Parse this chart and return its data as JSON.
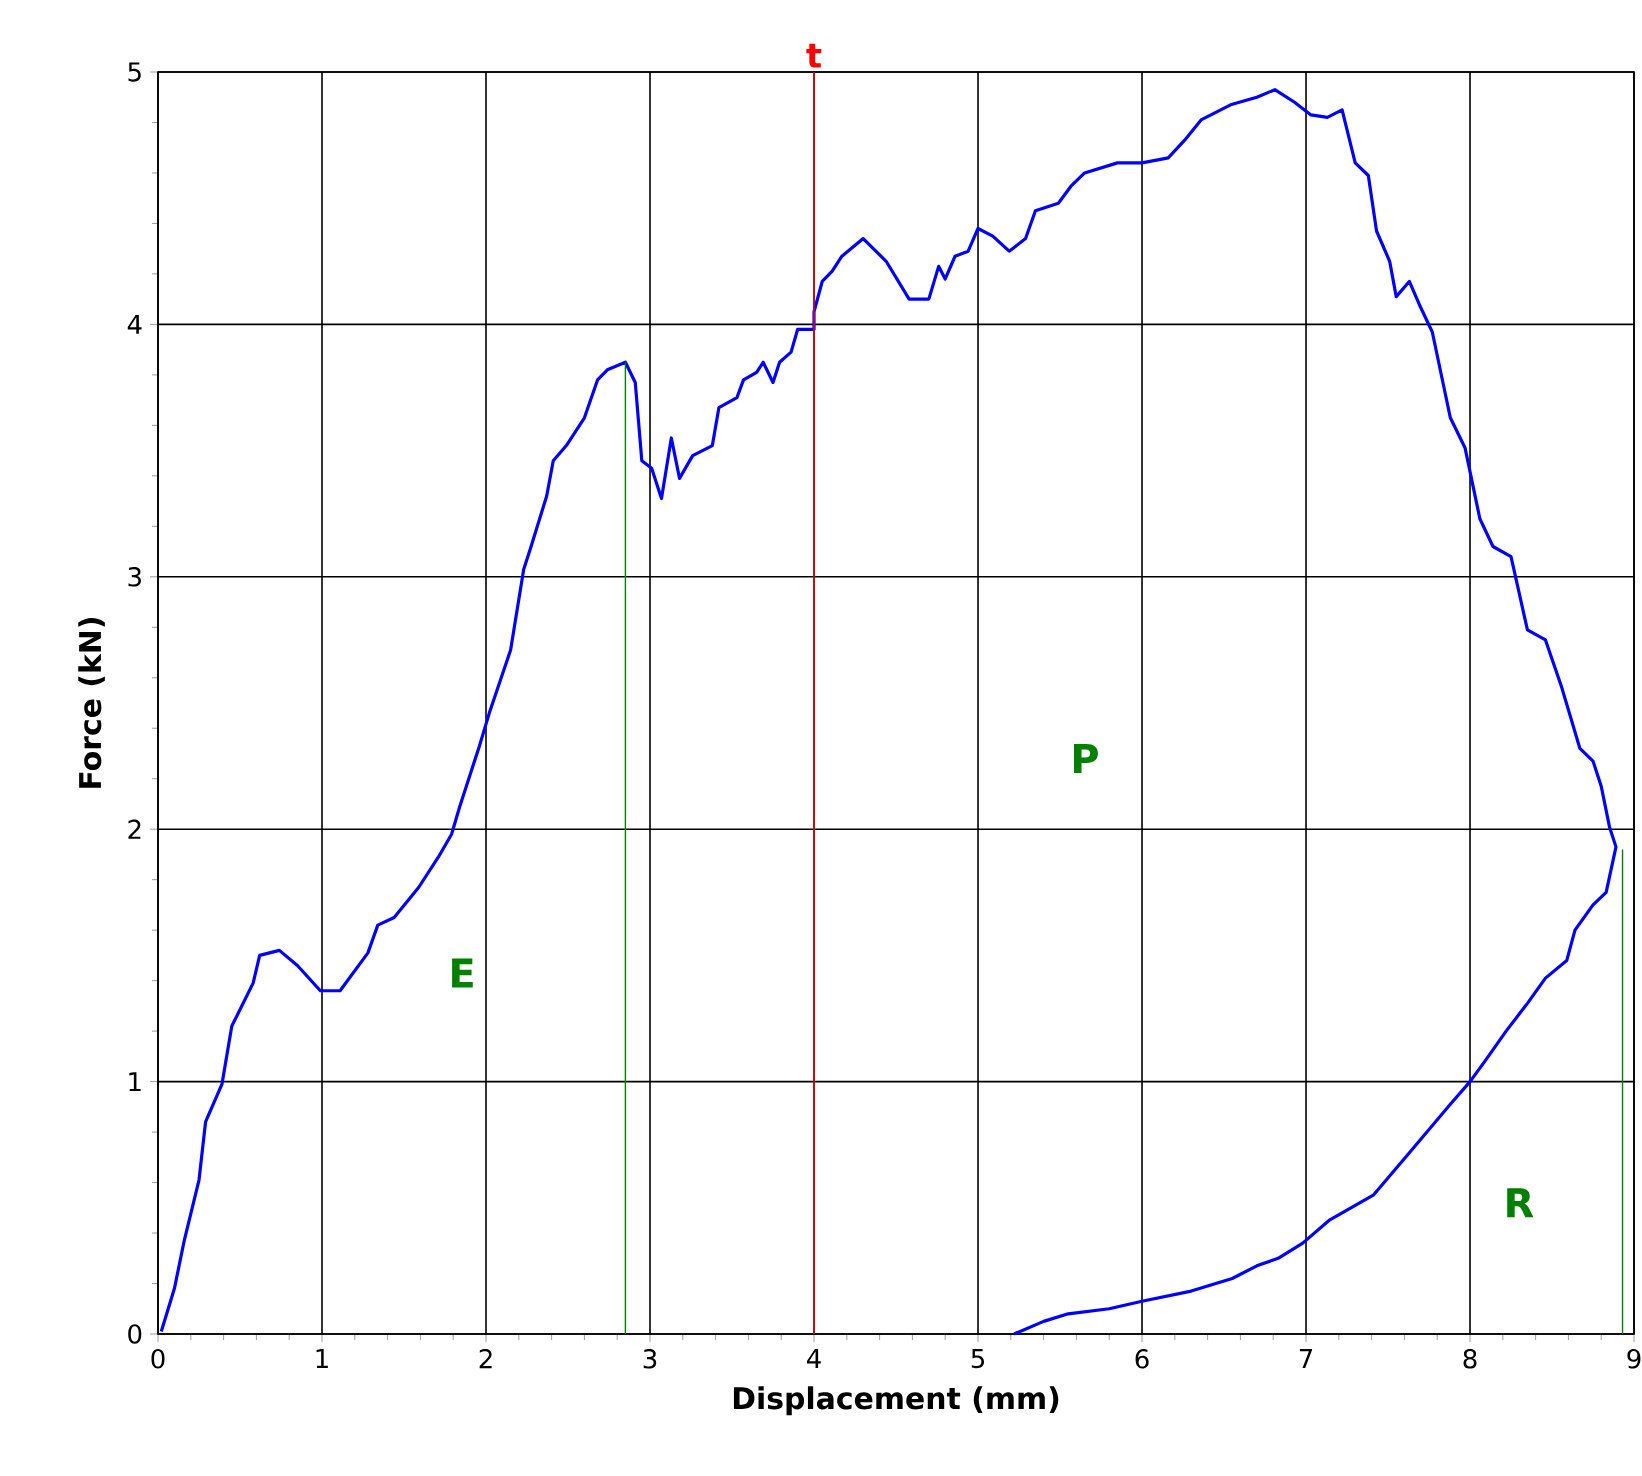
{
  "chart_data": {
    "type": "line",
    "xlabel": "Displacement (mm)",
    "ylabel": "Force (kN)",
    "xlim": [
      0,
      9
    ],
    "ylim": [
      0,
      5
    ],
    "xticks": [
      0,
      1,
      2,
      3,
      4,
      5,
      6,
      7,
      8,
      9
    ],
    "yticks": [
      0,
      1,
      2,
      3,
      4,
      5
    ],
    "grid": true,
    "marker": "none",
    "line_style": "solid",
    "series": [
      {
        "color": "#0000ff",
        "x": [
          0.02,
          0.1,
          0.16,
          0.25,
          0.29,
          0.39,
          0.45,
          0.58,
          0.62,
          0.74,
          0.85,
          0.99,
          1.11,
          1.28,
          1.34,
          1.44,
          1.59,
          1.71,
          1.79,
          1.84,
          1.96,
          2.02,
          2.15,
          2.23,
          2.27,
          2.37,
          2.41,
          2.49,
          2.6,
          2.68,
          2.74,
          2.85,
          2.91,
          2.95,
          3.01,
          3.07,
          3.13,
          3.18,
          3.26,
          3.38,
          3.42,
          3.53,
          3.57,
          3.65,
          3.69,
          3.75,
          3.79,
          3.86,
          3.9,
          4.0,
          4.0,
          4.05,
          4.11,
          4.17,
          4.3,
          4.44,
          4.58,
          4.7,
          4.76,
          4.8,
          4.86,
          4.94,
          5.0,
          5.09,
          5.19,
          5.29,
          5.35,
          5.49,
          5.57,
          5.65,
          5.85,
          6.0,
          6.16,
          6.26,
          6.36,
          6.54,
          6.7,
          6.81,
          6.93,
          7.03,
          7.13,
          7.22,
          7.3,
          7.38,
          7.43,
          7.51,
          7.55,
          7.63,
          7.69,
          7.77,
          7.88,
          7.97,
          8.06,
          8.14,
          8.25,
          8.35,
          8.46,
          8.56,
          8.67,
          8.75,
          8.8,
          8.85,
          8.89,
          8.83,
          8.75,
          8.64,
          8.59,
          8.46,
          8.35,
          8.22,
          8.09,
          8.0,
          7.88,
          7.75,
          7.62,
          7.41,
          7.14,
          6.98,
          6.83,
          6.7,
          6.55,
          6.3,
          6.0,
          5.8,
          5.55,
          5.4,
          5.22
        ],
        "values": [
          0.01,
          0.18,
          0.37,
          0.61,
          0.84,
          0.99,
          1.22,
          1.39,
          1.5,
          1.52,
          1.46,
          1.36,
          1.36,
          1.51,
          1.62,
          1.65,
          1.77,
          1.89,
          1.98,
          2.09,
          2.33,
          2.46,
          2.71,
          3.03,
          3.11,
          3.32,
          3.46,
          3.52,
          3.63,
          3.78,
          3.82,
          3.85,
          3.77,
          3.46,
          3.43,
          3.31,
          3.55,
          3.39,
          3.48,
          3.52,
          3.67,
          3.71,
          3.78,
          3.81,
          3.85,
          3.77,
          3.85,
          3.89,
          3.98,
          3.98,
          4.05,
          4.17,
          4.21,
          4.27,
          4.34,
          4.25,
          4.1,
          4.1,
          4.23,
          4.18,
          4.27,
          4.29,
          4.38,
          4.35,
          4.29,
          4.34,
          4.45,
          4.48,
          4.55,
          4.6,
          4.64,
          4.64,
          4.66,
          4.73,
          4.81,
          4.87,
          4.9,
          4.93,
          4.88,
          4.83,
          4.82,
          4.85,
          4.64,
          4.59,
          4.37,
          4.25,
          4.11,
          4.17,
          4.08,
          3.97,
          3.63,
          3.51,
          3.23,
          3.12,
          3.08,
          2.79,
          2.75,
          2.56,
          2.32,
          2.27,
          2.17,
          2.01,
          1.93,
          1.75,
          1.7,
          1.6,
          1.48,
          1.41,
          1.31,
          1.2,
          1.08,
          1.0,
          0.91,
          0.81,
          0.71,
          0.55,
          0.45,
          0.36,
          0.3,
          0.27,
          0.22,
          0.17,
          0.13,
          0.1,
          0.08,
          0.05,
          0.0
        ]
      },
      {
        "color": "#008000",
        "x": [
          2.85,
          2.85
        ],
        "values": [
          0,
          3.85
        ]
      },
      {
        "color": "#008000",
        "x": [
          8.93,
          8.93
        ],
        "values": [
          0,
          1.92
        ]
      }
    ],
    "ref_lines": [
      {
        "axis": "x",
        "value": 4,
        "label": "t",
        "color": "#ff0000"
      }
    ],
    "annotations": [
      "E",
      "P",
      "R"
    ]
  }
}
